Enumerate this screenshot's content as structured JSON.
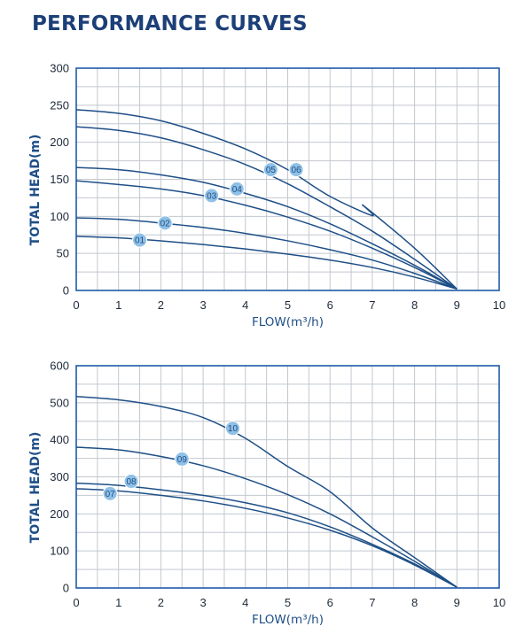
{
  "title": "PERFORMANCE CURVES",
  "colors": {
    "title": "#1c3f78",
    "frame": "#1e5aa8",
    "grid": "#c2c8cf",
    "curve": "#1e4f87",
    "badge_fill": "#8fc0e6",
    "badge_text": "#1e4f87"
  },
  "chart_data": [
    {
      "type": "line",
      "xlabel": "FLOW(m³/h)",
      "ylabel": "TOTAL HEAD(m)",
      "xlim": [
        0,
        10
      ],
      "ylim": [
        0,
        300
      ],
      "xticks": [
        0,
        1,
        2,
        3,
        4,
        5,
        6,
        7,
        8,
        9,
        10
      ],
      "yticks": [
        0,
        50,
        100,
        150,
        200,
        250,
        300
      ],
      "series": [
        {
          "name": "01",
          "label_at": [
            1.5,
            68
          ],
          "x": [
            0,
            1,
            2,
            3,
            4,
            5,
            6,
            7,
            8,
            9
          ],
          "values": [
            73,
            71,
            67,
            62,
            56,
            49,
            41,
            31,
            18,
            2
          ]
        },
        {
          "name": "02",
          "label_at": [
            2.1,
            91
          ],
          "x": [
            0,
            1,
            2,
            3,
            4,
            5,
            6,
            7,
            8,
            9
          ],
          "values": [
            98,
            96,
            91,
            85,
            77,
            67,
            55,
            41,
            23,
            2
          ]
        },
        {
          "name": "03",
          "label_at": [
            3.2,
            128
          ],
          "x": [
            0,
            1,
            2,
            3,
            4,
            5,
            6,
            7,
            8,
            9
          ],
          "values": [
            148,
            143,
            137,
            128,
            115,
            99,
            80,
            57,
            31,
            2
          ]
        },
        {
          "name": "04",
          "label_at": [
            3.8,
            137
          ],
          "x": [
            0,
            1,
            2,
            3,
            4,
            5,
            6,
            7,
            8,
            9
          ],
          "values": [
            166,
            163,
            156,
            146,
            131,
            113,
            90,
            63,
            34,
            2
          ]
        },
        {
          "name": "05",
          "label_at": [
            4.6,
            163
          ],
          "x": [
            0,
            1,
            2,
            3,
            4,
            5,
            6,
            7,
            8,
            9
          ],
          "values": [
            221,
            216,
            206,
            190,
            170,
            144,
            113,
            80,
            42,
            2
          ]
        },
        {
          "name": "06",
          "label_at": [
            5.2,
            163
          ],
          "x": [
            0,
            1,
            2,
            3,
            4,
            5,
            6,
            7,
            6.8,
            8,
            9
          ],
          "values": [
            244,
            239,
            229,
            212,
            191,
            163,
            127,
            101,
            114,
            57,
            2
          ]
        }
      ]
    },
    {
      "type": "line",
      "xlabel": "FLOW(m³/h)",
      "ylabel": "TOTAL HEAD(m)",
      "xlim": [
        0,
        10
      ],
      "ylim": [
        0,
        600
      ],
      "xticks": [
        0,
        1,
        2,
        3,
        4,
        5,
        6,
        7,
        8,
        9,
        10
      ],
      "yticks": [
        0,
        100,
        200,
        300,
        400,
        500,
        600
      ],
      "series": [
        {
          "name": "07",
          "label_at": [
            0.8,
            255
          ],
          "x": [
            0,
            1,
            2,
            3,
            4,
            5,
            6,
            7,
            8,
            9
          ],
          "values": [
            268,
            262,
            250,
            235,
            215,
            189,
            156,
            114,
            62,
            2
          ]
        },
        {
          "name": "08",
          "label_at": [
            1.3,
            288
          ],
          "x": [
            0,
            1,
            2,
            3,
            4,
            5,
            6,
            7,
            8,
            9
          ],
          "values": [
            283,
            277,
            265,
            250,
            230,
            203,
            165,
            118,
            65,
            2
          ]
        },
        {
          "name": "09",
          "label_at": [
            2.5,
            348
          ],
          "x": [
            0,
            1,
            2,
            3,
            4,
            5,
            6,
            7,
            8,
            9
          ],
          "values": [
            380,
            373,
            355,
            330,
            295,
            252,
            200,
            138,
            72,
            2
          ]
        },
        {
          "name": "10",
          "label_at": [
            3.7,
            431
          ],
          "x": [
            0,
            1,
            2,
            3,
            4,
            5,
            6,
            7,
            8,
            9
          ],
          "values": [
            517,
            508,
            490,
            460,
            404,
            328,
            260,
            162,
            82,
            2
          ]
        }
      ]
    }
  ]
}
